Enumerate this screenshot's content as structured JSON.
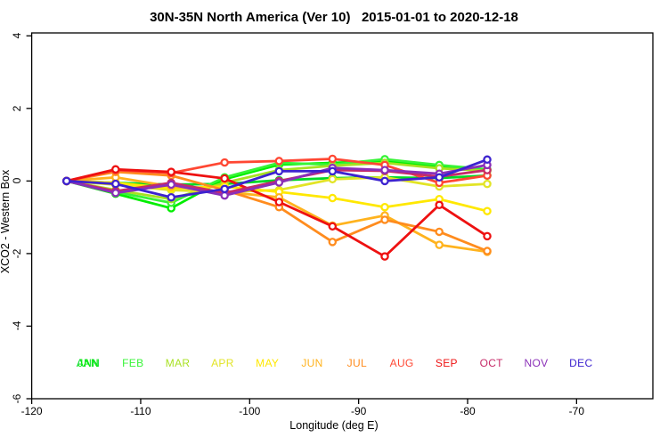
{
  "title": "30N-35N North America (Ver 10)   2015-01-01 to 2020-12-18",
  "chart_data": {
    "type": "line",
    "title": "30N-35N North America (Ver 10)   2015-01-01 to 2020-12-18",
    "xlabel": "Longitude (deg E)",
    "ylabel": "XCO2 - Western Box",
    "xlim": [
      -120,
      -63
    ],
    "ylim": [
      -6,
      4.08
    ],
    "xticks": [
      -120,
      -110,
      -100,
      -90,
      -80,
      -70
    ],
    "yticks": [
      4,
      2,
      0,
      -2,
      -4,
      -6
    ],
    "grid": false,
    "marker": "open-circle",
    "legend_position": "bottom-inside",
    "x": [
      -116.8,
      -112.3,
      -107.2,
      -102.3,
      -97.3,
      -92.4,
      -87.6,
      -82.6,
      -78.2
    ],
    "series": [
      {
        "name": "ANN",
        "color": "#00D926",
        "legend_slot": 0,
        "values": [
          0,
          -0.05,
          -0.1,
          -0.08,
          0.02,
          0.08,
          0.1,
          0.08,
          0.15
        ]
      },
      {
        "name": "JAN",
        "color": "#00EE00",
        "legend_slot": 0,
        "values": [
          0,
          -0.35,
          -0.75,
          0.05,
          0.45,
          0.5,
          0.55,
          0.4,
          0.3
        ]
      },
      {
        "name": "FEB",
        "color": "#37F437",
        "legend_slot": 1,
        "values": [
          0,
          -0.3,
          -0.6,
          0.1,
          0.5,
          0.45,
          0.6,
          0.44,
          0.32
        ]
      },
      {
        "name": "MAR",
        "color": "#A8E122",
        "legend_slot": 2,
        "values": [
          0,
          -0.25,
          -0.5,
          -0.05,
          0.3,
          0.42,
          0.5,
          0.35,
          0.28
        ]
      },
      {
        "name": "APR",
        "color": "#E2E426",
        "legend_slot": 3,
        "values": [
          0,
          -0.1,
          -0.25,
          -0.3,
          -0.25,
          0.05,
          0.1,
          -0.15,
          -0.08
        ]
      },
      {
        "name": "MAY",
        "color": "#FFE800",
        "legend_slot": 4,
        "values": [
          0,
          -0.05,
          -0.2,
          -0.15,
          -0.3,
          -0.47,
          -0.72,
          -0.5,
          -0.83
        ]
      },
      {
        "name": "JUN",
        "color": "#FFB31E",
        "legend_slot": 5,
        "values": [
          0,
          0.1,
          -0.15,
          -0.3,
          -0.45,
          -1.23,
          -0.95,
          -1.76,
          -1.95
        ]
      },
      {
        "name": "JUL",
        "color": "#FF8C1E",
        "legend_slot": 6,
        "values": [
          0,
          0.25,
          0.15,
          -0.25,
          -0.72,
          -1.68,
          -1.07,
          -1.4,
          -1.93
        ]
      },
      {
        "name": "AUG",
        "color": "#FF4733",
        "legend_slot": 7,
        "values": [
          0,
          0.3,
          0.22,
          0.51,
          0.55,
          0.61,
          0.44,
          -0.05,
          0.15
        ]
      },
      {
        "name": "SEP",
        "color": "#EE1111",
        "legend_slot": 8,
        "values": [
          0,
          0.32,
          0.25,
          0.07,
          -0.58,
          -1.25,
          -2.08,
          -0.66,
          -1.52
        ]
      },
      {
        "name": "OCT",
        "color": "#C62A68",
        "legend_slot": 9,
        "values": [
          0,
          -0.28,
          -0.05,
          -0.33,
          0.0,
          0.3,
          0.28,
          0.12,
          0.3
        ]
      },
      {
        "name": "NOV",
        "color": "#8A2FB8",
        "legend_slot": 10,
        "values": [
          0,
          -0.33,
          -0.1,
          -0.4,
          -0.04,
          0.36,
          0.3,
          0.2,
          0.44
        ]
      },
      {
        "name": "DEC",
        "color": "#3D23CF",
        "legend_slot": 11,
        "values": [
          0,
          -0.08,
          -0.45,
          -0.22,
          0.27,
          0.27,
          0.0,
          0.1,
          0.59
        ]
      }
    ]
  }
}
